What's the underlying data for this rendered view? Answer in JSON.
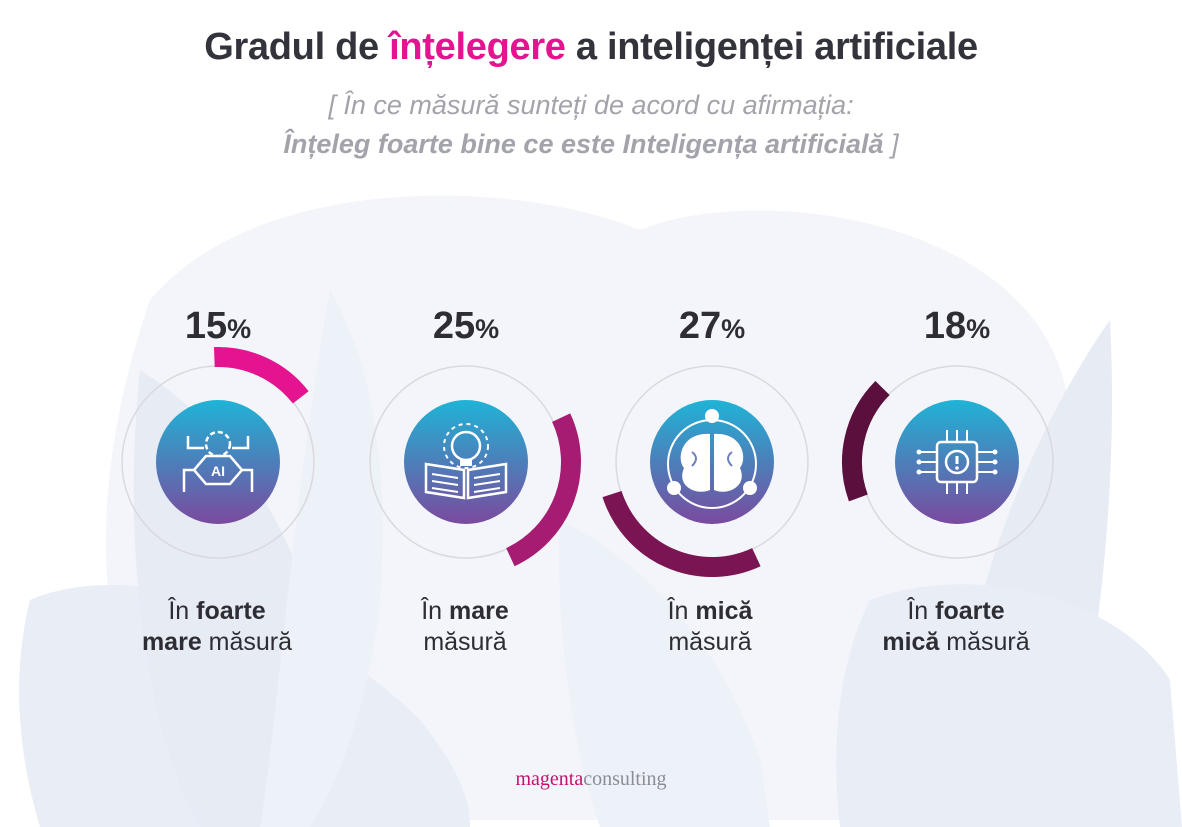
{
  "title": {
    "before": "Gradul de ",
    "highlight": "înțelegere",
    "after": " a inteligenței artificiale"
  },
  "subtitle": {
    "line1": "[ În ce măsură sunteți de acord cu afirmația:",
    "line2_bold": "Înțeleg foarte bine ce este Inteligența artificială",
    "line2_end": " ]"
  },
  "colors": {
    "accent": "#e4138f",
    "icon_gradient_top": "#1fb4d6",
    "icon_gradient_bottom": "#7a4a9e",
    "ring": "#d9d9de"
  },
  "chart_data": {
    "type": "radial-progress",
    "title": "Gradul de înțelegere a inteligenței artificiale",
    "unit": "%",
    "categories": [
      "În foarte mare măsură",
      "În mare măsură",
      "În mică măsură",
      "În foarte mică măsură"
    ],
    "values": [
      15,
      25,
      27,
      18
    ],
    "value_labels": [
      "15",
      "25",
      "27",
      "18"
    ],
    "series_colors": [
      "#e4138f",
      "#a51c72",
      "#7a1452",
      "#5a0f3c"
    ],
    "icons": [
      "ai-chip-gear-icon",
      "lightbulb-book-icon",
      "brain-network-icon",
      "processor-alert-icon"
    ]
  },
  "labels": [
    {
      "pre": "În ",
      "bold1": "foarte",
      "mid": "",
      "bold2": "mare",
      "post": " măsură"
    },
    {
      "pre": "În ",
      "bold1": "mare",
      "mid": "",
      "bold2": "",
      "post": "măsură"
    },
    {
      "pre": "În ",
      "bold1": "mică",
      "mid": "",
      "bold2": "",
      "post": "măsură"
    },
    {
      "pre": "În ",
      "bold1": "foarte",
      "mid": "",
      "bold2": "mică",
      "post": " măsură"
    }
  ],
  "logo": {
    "magenta": "magenta",
    "consulting": "consulting"
  }
}
